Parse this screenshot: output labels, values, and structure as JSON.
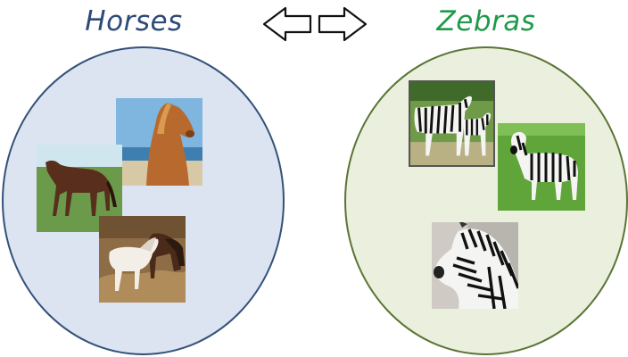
{
  "left_group": {
    "title": "Horses"
  },
  "right_group": {
    "title": "Zebras"
  },
  "colors": {
    "horses_title": "#2d4a78",
    "zebras_title": "#1f9a4a",
    "horses_fill": "#dbe4f0",
    "horses_border": "#34517a",
    "zebras_fill": "#ebf0de",
    "zebras_border": "#5a7435"
  },
  "icons": [
    "left-arrow-icon",
    "right-arrow-icon"
  ]
}
